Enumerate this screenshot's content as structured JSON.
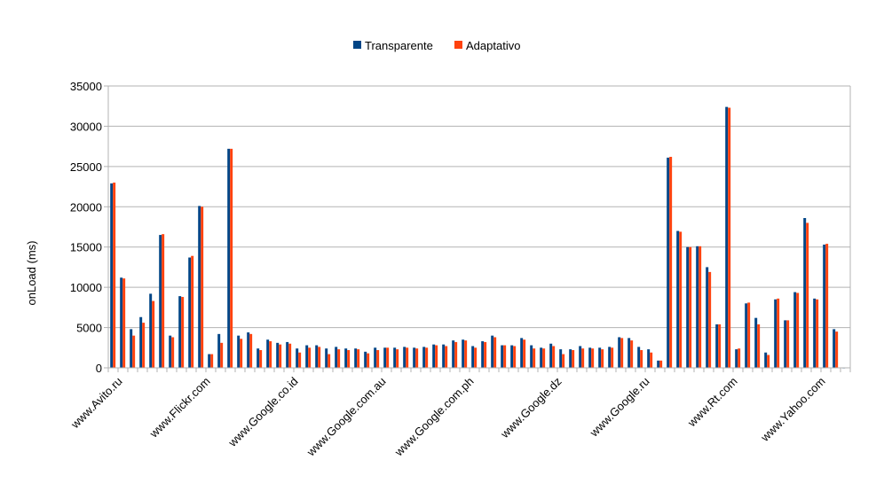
{
  "chart_data": {
    "type": "bar",
    "title": "",
    "xlabel": "",
    "ylabel": "onLoad  (ms)",
    "ylim": [
      0,
      35000
    ],
    "yticks": [
      0,
      5000,
      10000,
      15000,
      20000,
      25000,
      30000,
      35000
    ],
    "grid": "horizontal",
    "legend_position": "top-center",
    "category_labels": [
      "www.Avito.ru",
      "www.Flickr.com",
      "www.Google.co.id",
      "www.Google.com.au",
      "www.Google.com.ph",
      "www.Google.dz",
      "www.Google.ru",
      "www.Rt.com",
      "www.Yahoo.com"
    ],
    "category_label_positions": [
      1,
      10,
      19,
      28,
      37,
      46,
      55,
      64,
      73
    ],
    "series": [
      {
        "name": "Transparente",
        "color": "#004586",
        "values": [
          22900,
          11200,
          4800,
          6300,
          9200,
          16500,
          4000,
          8900,
          13700,
          20100,
          1700,
          4200,
          27200,
          4000,
          4400,
          2400,
          3500,
          3100,
          3200,
          2400,
          2800,
          2800,
          2400,
          2600,
          2400,
          2400,
          2000,
          2500,
          2500,
          2500,
          2600,
          2500,
          2600,
          2900,
          2900,
          3400,
          3500,
          2700,
          3300,
          4000,
          2800,
          2800,
          3700,
          2800,
          2500,
          3000,
          2300,
          2300,
          2700,
          2500,
          2500,
          2600,
          3800,
          3700,
          2600,
          2300,
          900,
          26100,
          17000,
          15000,
          15100,
          12500,
          5400,
          32400,
          2300,
          8000,
          6200,
          1900,
          8500,
          5900,
          9400,
          18600,
          8600,
          15300,
          4800
        ],
        "extra_point": 40
      },
      {
        "name": "Adaptativo",
        "color": "#ff420e",
        "values": [
          23000,
          11100,
          4000,
          5600,
          8300,
          16600,
          3800,
          8800,
          13900,
          20000,
          1700,
          3100,
          27200,
          3600,
          4200,
          2200,
          3300,
          2900,
          3000,
          1900,
          2500,
          2600,
          1700,
          2300,
          2200,
          2300,
          1800,
          2200,
          2500,
          2300,
          2500,
          2400,
          2500,
          2800,
          2700,
          3200,
          3400,
          2500,
          3200,
          3800,
          2800,
          2700,
          3500,
          2400,
          2400,
          2700,
          1700,
          2200,
          2400,
          2400,
          2300,
          2500,
          3700,
          3400,
          2200,
          1900,
          900,
          26200,
          16900,
          15000,
          15100,
          11900,
          5400,
          32300,
          2400,
          8100,
          5400,
          1600,
          8600,
          5900,
          9300,
          18000,
          8500,
          15400,
          4500
        ]
      }
    ]
  }
}
